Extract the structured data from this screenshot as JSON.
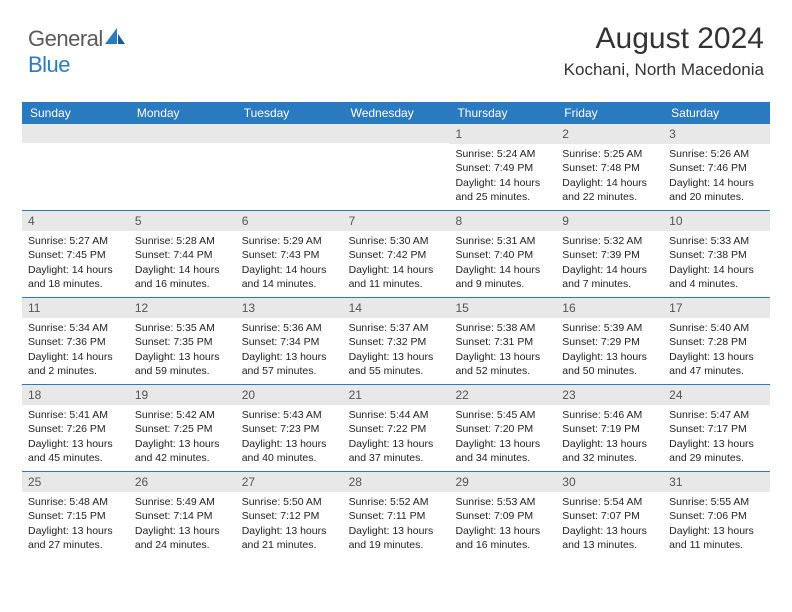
{
  "brand": {
    "name_a": "General",
    "name_b": "Blue"
  },
  "title": {
    "month": "August 2024",
    "location": "Kochani, North Macedonia"
  },
  "colors": {
    "header_bg": "#2a7abf",
    "row_divider": "#2a7abf",
    "daynum_bg": "#e8e8e8",
    "text": "#222222"
  },
  "calendar": {
    "type": "table",
    "day_headers": [
      "Sunday",
      "Monday",
      "Tuesday",
      "Wednesday",
      "Thursday",
      "Friday",
      "Saturday"
    ],
    "weeks": [
      [
        null,
        null,
        null,
        null,
        {
          "n": "1",
          "sunrise": "5:24 AM",
          "sunset": "7:49 PM",
          "dl_h": "14",
          "dl_m": "25"
        },
        {
          "n": "2",
          "sunrise": "5:25 AM",
          "sunset": "7:48 PM",
          "dl_h": "14",
          "dl_m": "22"
        },
        {
          "n": "3",
          "sunrise": "5:26 AM",
          "sunset": "7:46 PM",
          "dl_h": "14",
          "dl_m": "20"
        }
      ],
      [
        {
          "n": "4",
          "sunrise": "5:27 AM",
          "sunset": "7:45 PM",
          "dl_h": "14",
          "dl_m": "18"
        },
        {
          "n": "5",
          "sunrise": "5:28 AM",
          "sunset": "7:44 PM",
          "dl_h": "14",
          "dl_m": "16"
        },
        {
          "n": "6",
          "sunrise": "5:29 AM",
          "sunset": "7:43 PM",
          "dl_h": "14",
          "dl_m": "14"
        },
        {
          "n": "7",
          "sunrise": "5:30 AM",
          "sunset": "7:42 PM",
          "dl_h": "14",
          "dl_m": "11"
        },
        {
          "n": "8",
          "sunrise": "5:31 AM",
          "sunset": "7:40 PM",
          "dl_h": "14",
          "dl_m": "9"
        },
        {
          "n": "9",
          "sunrise": "5:32 AM",
          "sunset": "7:39 PM",
          "dl_h": "14",
          "dl_m": "7"
        },
        {
          "n": "10",
          "sunrise": "5:33 AM",
          "sunset": "7:38 PM",
          "dl_h": "14",
          "dl_m": "4"
        }
      ],
      [
        {
          "n": "11",
          "sunrise": "5:34 AM",
          "sunset": "7:36 PM",
          "dl_h": "14",
          "dl_m": "2"
        },
        {
          "n": "12",
          "sunrise": "5:35 AM",
          "sunset": "7:35 PM",
          "dl_h": "13",
          "dl_m": "59"
        },
        {
          "n": "13",
          "sunrise": "5:36 AM",
          "sunset": "7:34 PM",
          "dl_h": "13",
          "dl_m": "57"
        },
        {
          "n": "14",
          "sunrise": "5:37 AM",
          "sunset": "7:32 PM",
          "dl_h": "13",
          "dl_m": "55"
        },
        {
          "n": "15",
          "sunrise": "5:38 AM",
          "sunset": "7:31 PM",
          "dl_h": "13",
          "dl_m": "52"
        },
        {
          "n": "16",
          "sunrise": "5:39 AM",
          "sunset": "7:29 PM",
          "dl_h": "13",
          "dl_m": "50"
        },
        {
          "n": "17",
          "sunrise": "5:40 AM",
          "sunset": "7:28 PM",
          "dl_h": "13",
          "dl_m": "47"
        }
      ],
      [
        {
          "n": "18",
          "sunrise": "5:41 AM",
          "sunset": "7:26 PM",
          "dl_h": "13",
          "dl_m": "45"
        },
        {
          "n": "19",
          "sunrise": "5:42 AM",
          "sunset": "7:25 PM",
          "dl_h": "13",
          "dl_m": "42"
        },
        {
          "n": "20",
          "sunrise": "5:43 AM",
          "sunset": "7:23 PM",
          "dl_h": "13",
          "dl_m": "40"
        },
        {
          "n": "21",
          "sunrise": "5:44 AM",
          "sunset": "7:22 PM",
          "dl_h": "13",
          "dl_m": "37"
        },
        {
          "n": "22",
          "sunrise": "5:45 AM",
          "sunset": "7:20 PM",
          "dl_h": "13",
          "dl_m": "34"
        },
        {
          "n": "23",
          "sunrise": "5:46 AM",
          "sunset": "7:19 PM",
          "dl_h": "13",
          "dl_m": "32"
        },
        {
          "n": "24",
          "sunrise": "5:47 AM",
          "sunset": "7:17 PM",
          "dl_h": "13",
          "dl_m": "29"
        }
      ],
      [
        {
          "n": "25",
          "sunrise": "5:48 AM",
          "sunset": "7:15 PM",
          "dl_h": "13",
          "dl_m": "27"
        },
        {
          "n": "26",
          "sunrise": "5:49 AM",
          "sunset": "7:14 PM",
          "dl_h": "13",
          "dl_m": "24"
        },
        {
          "n": "27",
          "sunrise": "5:50 AM",
          "sunset": "7:12 PM",
          "dl_h": "13",
          "dl_m": "21"
        },
        {
          "n": "28",
          "sunrise": "5:52 AM",
          "sunset": "7:11 PM",
          "dl_h": "13",
          "dl_m": "19"
        },
        {
          "n": "29",
          "sunrise": "5:53 AM",
          "sunset": "7:09 PM",
          "dl_h": "13",
          "dl_m": "16"
        },
        {
          "n": "30",
          "sunrise": "5:54 AM",
          "sunset": "7:07 PM",
          "dl_h": "13",
          "dl_m": "13"
        },
        {
          "n": "31",
          "sunrise": "5:55 AM",
          "sunset": "7:06 PM",
          "dl_h": "13",
          "dl_m": "11"
        }
      ]
    ]
  }
}
